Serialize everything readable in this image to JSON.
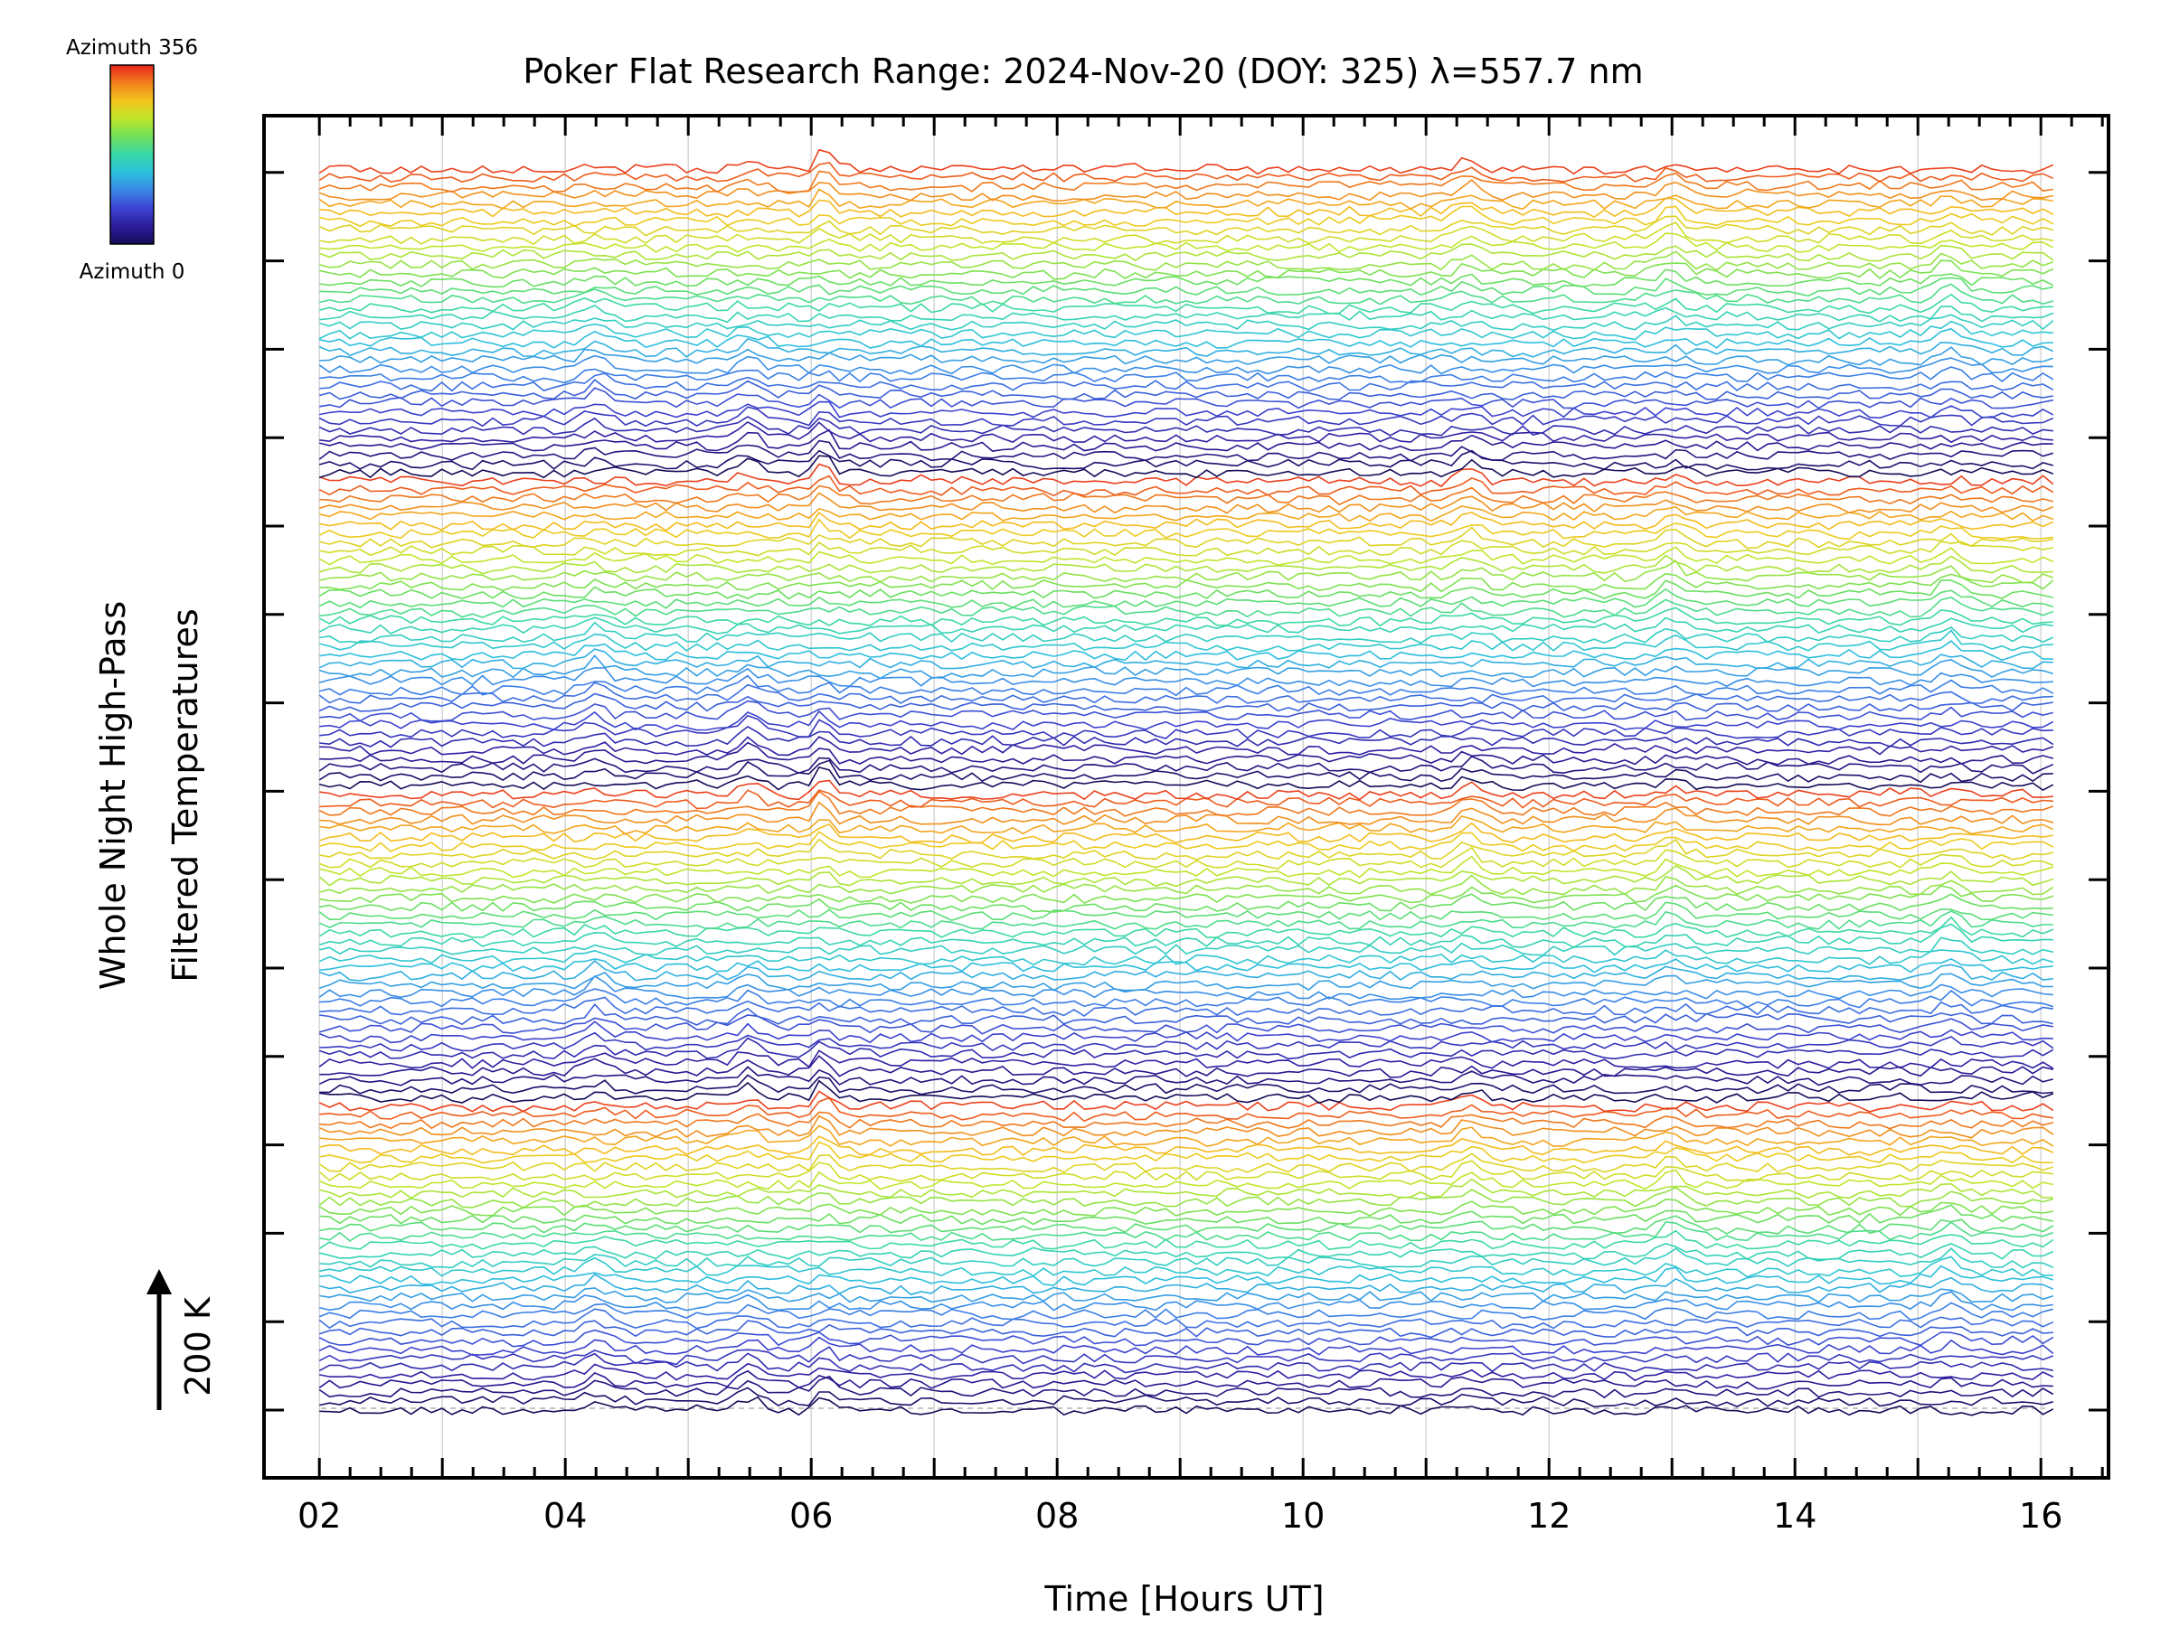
{
  "chart_data": {
    "type": "line",
    "title": "Poker Flat Research Range: 2024-Nov-20 (DOY: 325) λ=557.7 nm",
    "xlabel": "Time [Hours UT]",
    "ylabel_line1": "Whole Night High-Pass",
    "ylabel_line2": "Filtered Temperatures",
    "xlim": [
      1.55,
      16.55
    ],
    "x_ticks": [
      "02",
      "04",
      "06",
      "08",
      "10",
      "12",
      "14",
      "16"
    ],
    "x_tick_values": [
      2,
      4,
      6,
      8,
      10,
      12,
      14,
      16
    ],
    "x_gridlines": [
      2,
      3,
      4,
      5,
      6,
      7,
      8,
      9,
      10,
      11,
      12,
      13,
      14,
      15,
      16
    ],
    "scale_bar_label": "200 K",
    "colorbar": {
      "top_label": "Azimuth 356",
      "bottom_label": "Azimuth 0",
      "colors": [
        "#e8241c",
        "#f07f1c",
        "#f4c51c",
        "#bfe62c",
        "#6fe05a",
        "#38d8a8",
        "#2cc0dc",
        "#3a86e8",
        "#3c44d0",
        "#2c1c9c",
        "#140c58"
      ]
    },
    "time_range": [
      2.0,
      16.1
    ],
    "series_count": 144,
    "stack_spacing": 6.5,
    "azimuth_cycle": [
      0,
      356
    ],
    "event_times_hours": [
      4.25,
      5.5,
      6.1,
      11.35,
      13.0,
      15.25
    ],
    "grid": true,
    "legend": "top-left colorbar"
  }
}
